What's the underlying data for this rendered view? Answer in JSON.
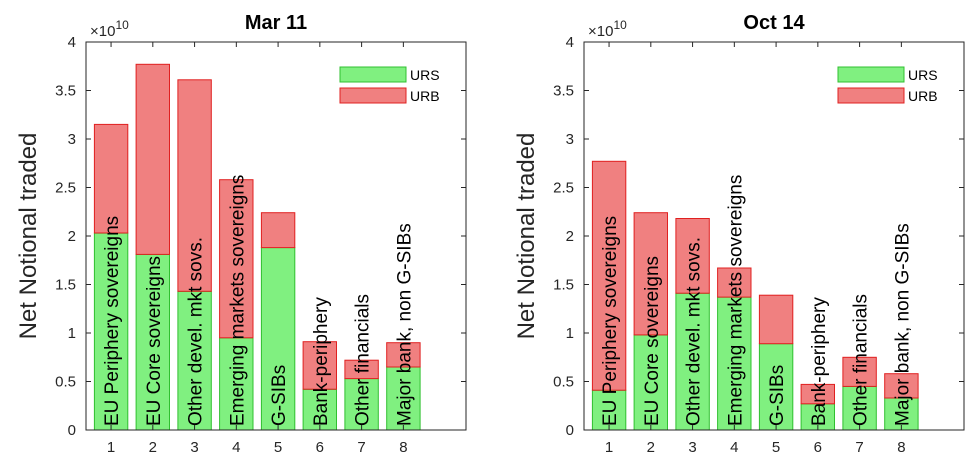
{
  "chart_data": [
    {
      "type": "bar",
      "stacked": true,
      "title": "Mar 11",
      "ylabel": "Net Notional traded",
      "y_exponent_label": "×10",
      "y_exponent_power": "10",
      "ylim": [
        0,
        4
      ],
      "y_ticks": [
        0,
        0.5,
        1,
        1.5,
        2,
        2.5,
        3,
        3.5,
        4
      ],
      "y_tick_labels": [
        "0",
        "0.5",
        "1",
        "1.5",
        "2",
        "2.5",
        "3",
        "3.5",
        "4"
      ],
      "xlim": [
        0.4,
        9.5
      ],
      "x": [
        1,
        2,
        3,
        4,
        5,
        6,
        7,
        8
      ],
      "x_tick_labels": [
        "1",
        "2",
        "3",
        "4",
        "5",
        "6",
        "7",
        "8"
      ],
      "category_labels": [
        "EU Periphery sovereigns",
        "EU Core sovereigns",
        "Other devel. mkt sovs.",
        "Emerging markets sovereigns",
        "G-SIBs",
        "Bank-periphery",
        "Other financials",
        "Major bank, non G-SIBs"
      ],
      "series": [
        {
          "name": "URS",
          "color": "#80f080",
          "edge": "#30c030",
          "values": [
            2.03,
            1.81,
            1.43,
            0.95,
            1.88,
            0.42,
            0.53,
            0.65
          ]
        },
        {
          "name": "URB",
          "color": "#f08080",
          "edge": "#e02020",
          "values": [
            1.12,
            1.96,
            2.18,
            1.63,
            0.36,
            0.49,
            0.19,
            0.25
          ]
        }
      ],
      "legend_position": "top-right",
      "grid": false
    },
    {
      "type": "bar",
      "stacked": true,
      "title": "Oct 14",
      "ylabel": "Net Notional traded",
      "y_exponent_label": "×10",
      "y_exponent_power": "10",
      "ylim": [
        0,
        4
      ],
      "y_ticks": [
        0,
        0.5,
        1,
        1.5,
        2,
        2.5,
        3,
        3.5,
        4
      ],
      "y_tick_labels": [
        "0",
        "0.5",
        "1",
        "1.5",
        "2",
        "2.5",
        "3",
        "3.5",
        "4"
      ],
      "xlim": [
        0.4,
        9.5
      ],
      "x": [
        1,
        2,
        3,
        4,
        5,
        6,
        7,
        8
      ],
      "x_tick_labels": [
        "1",
        "2",
        "3",
        "4",
        "5",
        "6",
        "7",
        "8"
      ],
      "category_labels": [
        "EU Periphery sovereigns",
        "EU Core sovereigns",
        "Other devel. mkt sovs.",
        "Emerging markets sovereigns",
        "G-SIBs",
        "Bank-periphery",
        "Other financials",
        "Major bank, non G-SIBs"
      ],
      "series": [
        {
          "name": "URS",
          "color": "#80f080",
          "edge": "#30c030",
          "values": [
            0.41,
            0.98,
            1.41,
            1.37,
            0.89,
            0.27,
            0.45,
            0.33
          ]
        },
        {
          "name": "URB",
          "color": "#f08080",
          "edge": "#e02020",
          "values": [
            2.36,
            1.26,
            0.77,
            0.3,
            0.5,
            0.2,
            0.3,
            0.25
          ]
        }
      ],
      "legend_position": "top-right",
      "grid": false
    }
  ]
}
